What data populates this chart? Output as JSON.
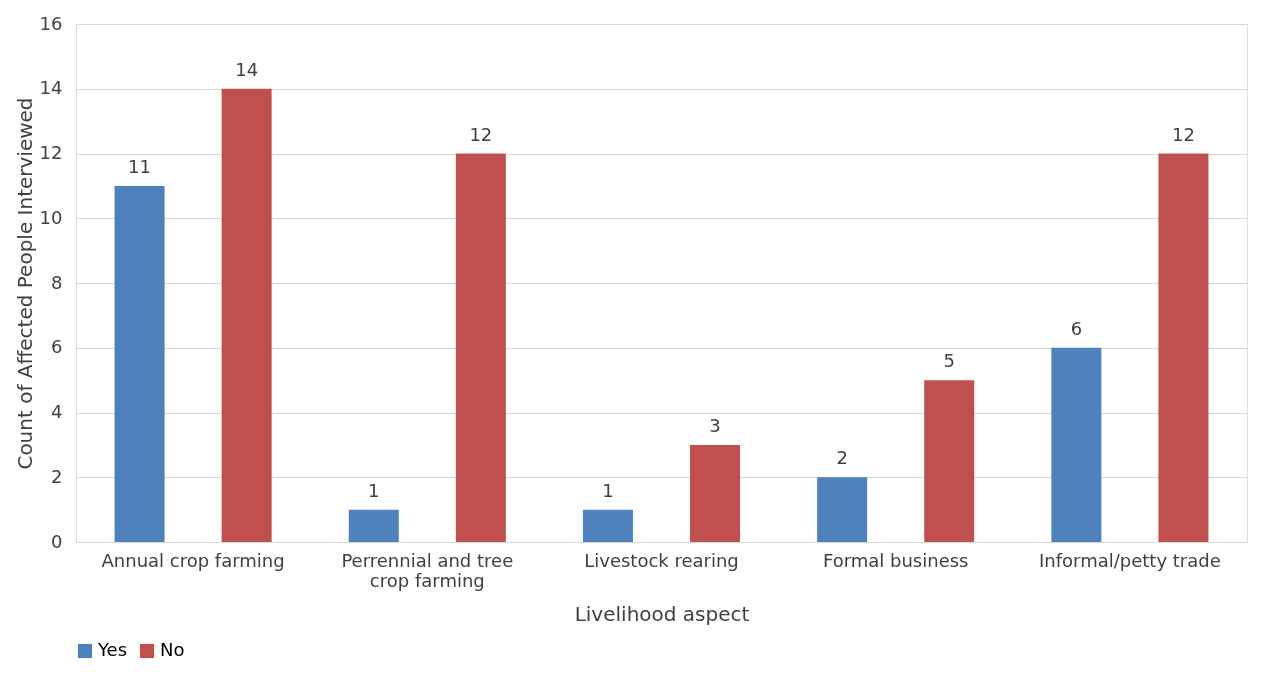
{
  "chart_data": {
    "type": "bar",
    "xlabel": "Livelihood aspect",
    "ylabel": "Count of Affected People Interviewed",
    "categories": [
      "Annual crop farming",
      "Perrennial and tree crop farming",
      "Livestock rearing",
      "Formal business",
      "Informal/petty trade"
    ],
    "series": [
      {
        "name": "Yes",
        "color": "#4f81bd",
        "values": [
          11,
          1,
          1,
          2,
          6
        ]
      },
      {
        "name": "No",
        "color": "#c0504d",
        "values": [
          14,
          12,
          3,
          5,
          12
        ]
      }
    ],
    "ylim": [
      0,
      16
    ],
    "yticks": [
      0,
      2,
      4,
      6,
      8,
      10,
      12,
      14,
      16
    ],
    "grid": "y",
    "legend": "bottom",
    "data_labels": true
  }
}
